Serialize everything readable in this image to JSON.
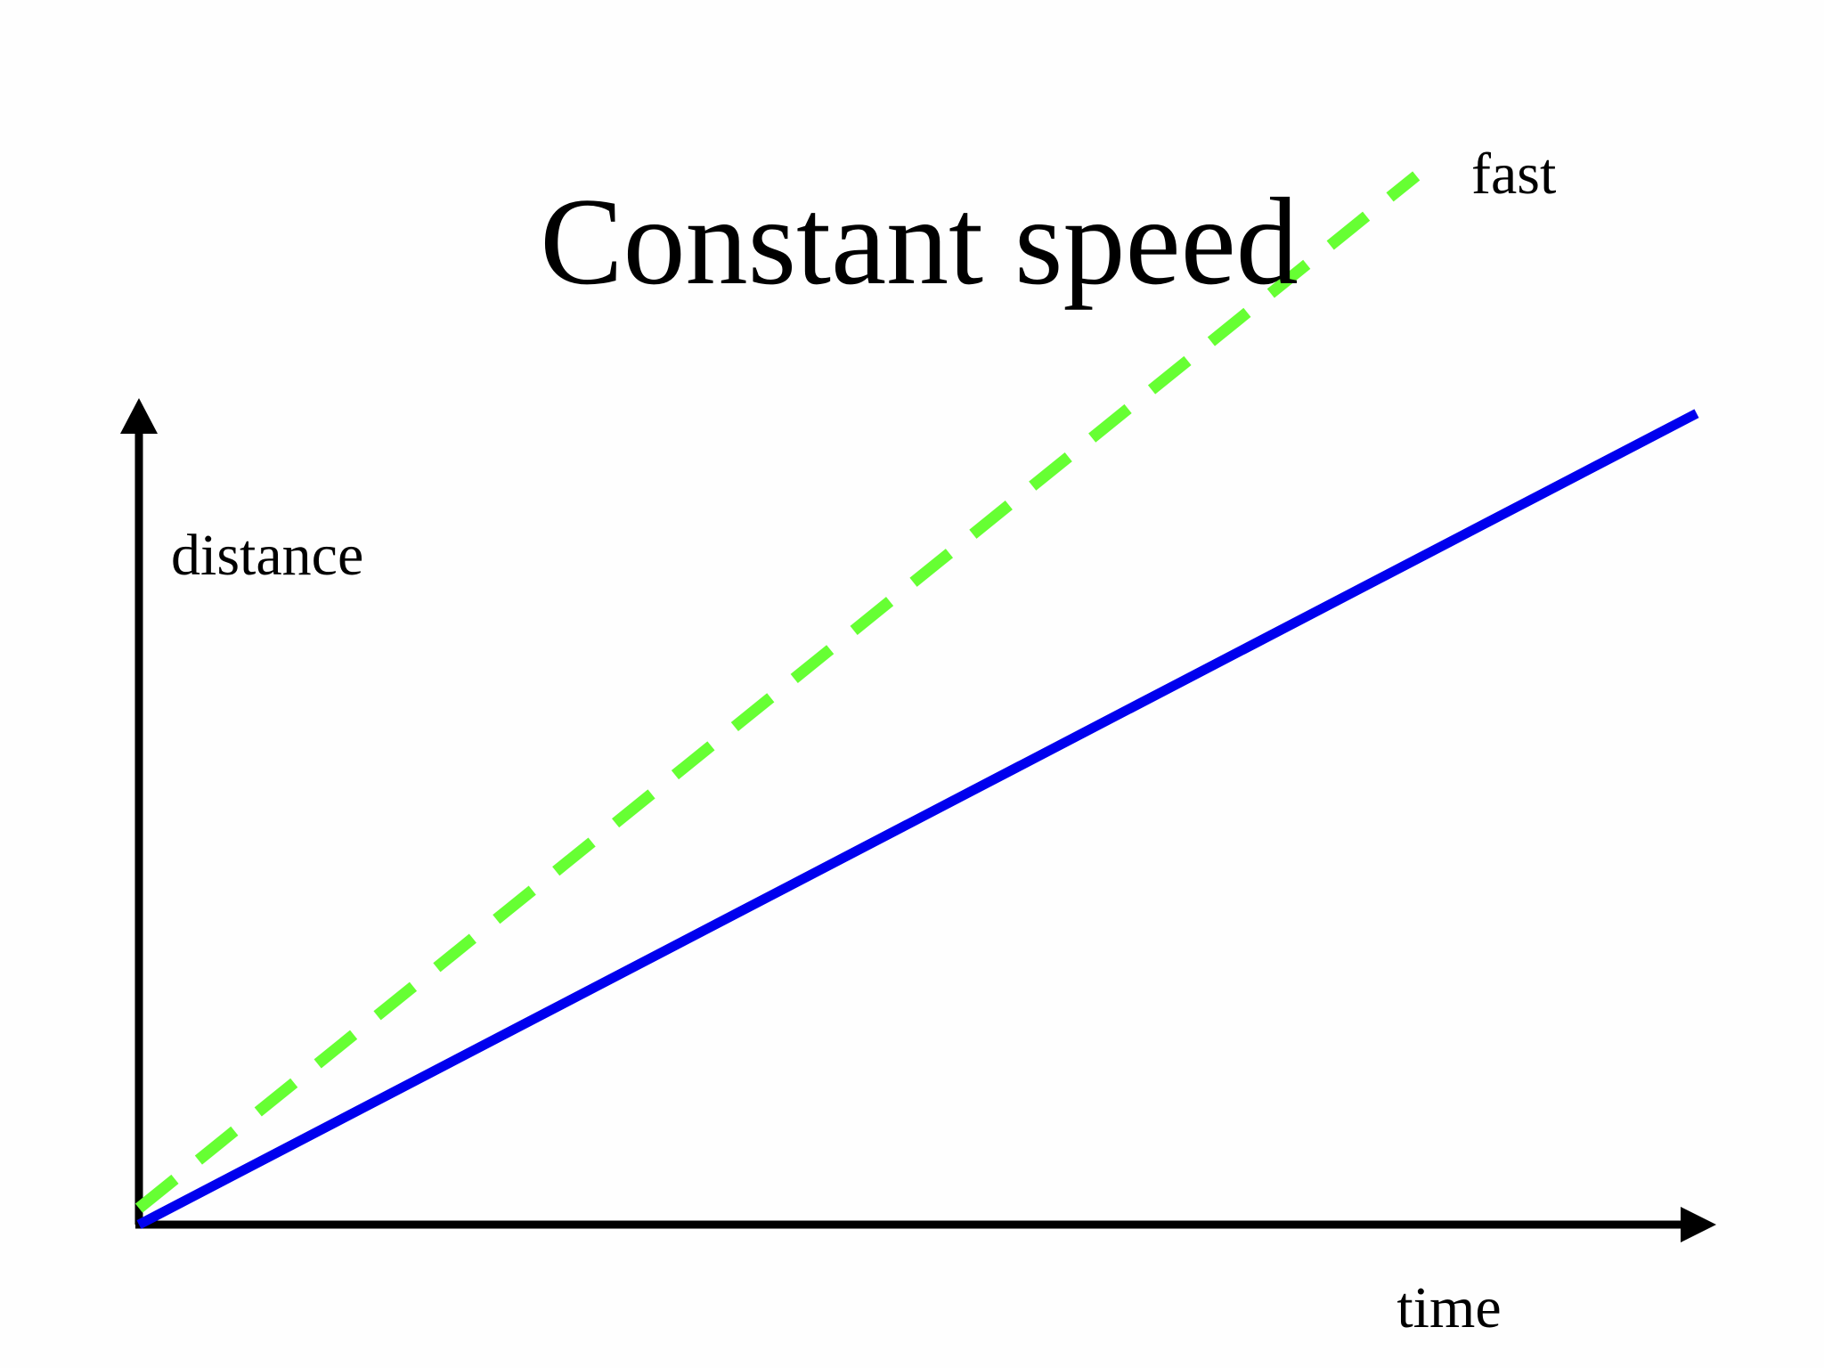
{
  "chart_data": {
    "type": "line",
    "title": "Constant speed",
    "xlabel": "time",
    "ylabel": "distance",
    "xlim": [
      0,
      100
    ],
    "ylim": [
      0,
      100
    ],
    "grid": false,
    "legend": "none",
    "series": [
      {
        "name": "fast",
        "style": "dashed",
        "color": "#66ff33",
        "x": [
          0,
          82
        ],
        "y": [
          2,
          128
        ]
      },
      {
        "name": "",
        "style": "solid",
        "color": "#0000ee",
        "x": [
          0,
          100
        ],
        "y": [
          0,
          99
        ]
      }
    ],
    "axis_color": "#000000"
  }
}
